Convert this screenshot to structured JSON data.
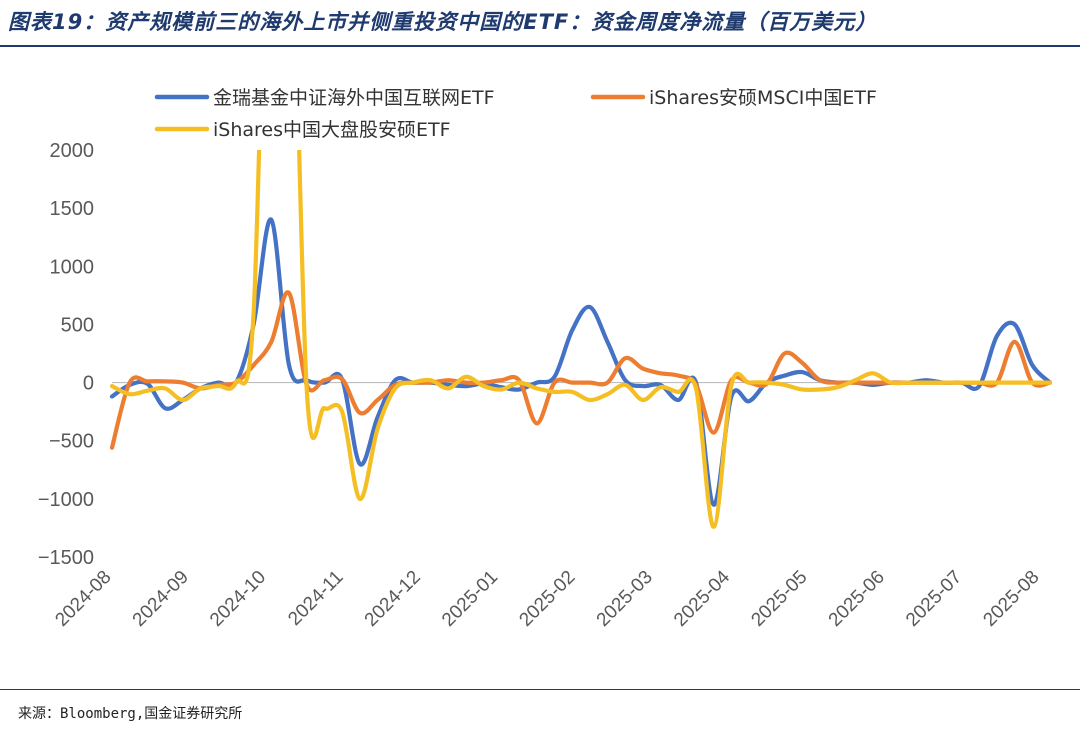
{
  "header": {
    "title": "图表19：资产规模前三的海外上市并侧重投资中国的ETF：资金周度净流量（百万美元）"
  },
  "footer": {
    "source": "来源：Bloomberg,国金证券研究所"
  },
  "chart_data": {
    "type": "line",
    "title": "图表19：资产规模前三的海外上市并侧重投资中国的ETF：资金周度净流量（百万美元）",
    "xlabel": "",
    "ylabel": "",
    "ylim": [
      -1500,
      2000
    ],
    "yticks": [
      2000,
      1500,
      1000,
      500,
      0,
      -500,
      -1000,
      -1500
    ],
    "xticks": [
      "2024-08",
      "2024-09",
      "2024-10",
      "2024-11",
      "2024-12",
      "2025-01",
      "2025-02",
      "2025-03",
      "2025-04",
      "2025-05",
      "2025-06",
      "2025-07",
      "2025-08"
    ],
    "legend_position": "top",
    "grid": false,
    "x": [
      "2024-08-02",
      "2024-08-09",
      "2024-08-16",
      "2024-08-23",
      "2024-08-30",
      "2024-09-06",
      "2024-09-13",
      "2024-09-20",
      "2024-09-27",
      "2024-10-04",
      "2024-10-11",
      "2024-10-18",
      "2024-10-25",
      "2024-11-01",
      "2024-11-08",
      "2024-11-15",
      "2024-11-22",
      "2024-11-29",
      "2024-12-06",
      "2024-12-13",
      "2024-12-20",
      "2024-12-27",
      "2025-01-03",
      "2025-01-10",
      "2025-01-17",
      "2025-01-24",
      "2025-01-31",
      "2025-02-07",
      "2025-02-14",
      "2025-02-21",
      "2025-02-28",
      "2025-03-07",
      "2025-03-14",
      "2025-03-21",
      "2025-03-28",
      "2025-04-04",
      "2025-04-11",
      "2025-04-18",
      "2025-04-25",
      "2025-05-02",
      "2025-05-09",
      "2025-05-16",
      "2025-05-23",
      "2025-05-30",
      "2025-06-06",
      "2025-06-13",
      "2025-06-20",
      "2025-06-27",
      "2025-07-04",
      "2025-07-11",
      "2025-07-18",
      "2025-07-25",
      "2025-08-01",
      "2025-08-08"
    ],
    "series": [
      {
        "name": "金瑞基金中证海外中国互联网ETF",
        "color": "#4472c4",
        "values": [
          -120,
          -20,
          -10,
          -220,
          -150,
          -50,
          0,
          0,
          500,
          1400,
          150,
          20,
          0,
          30,
          -700,
          -300,
          20,
          0,
          0,
          -20,
          -30,
          -10,
          -40,
          -60,
          0,
          50,
          450,
          650,
          350,
          20,
          -30,
          -20,
          -150,
          0,
          -1050,
          -120,
          -160,
          0,
          60,
          90,
          20,
          0,
          0,
          -20,
          0,
          0,
          20,
          0,
          0,
          -30,
          400,
          500,
          150,
          0
        ]
      },
      {
        "name": "iShares安硕MSCI中国ETF",
        "color": "#ed7d31",
        "values": [
          -560,
          0,
          10,
          10,
          0,
          -50,
          -20,
          0,
          150,
          350,
          770,
          -20,
          20,
          30,
          -260,
          -150,
          -20,
          0,
          0,
          20,
          0,
          0,
          20,
          20,
          -350,
          0,
          0,
          0,
          0,
          210,
          120,
          80,
          60,
          -20,
          -430,
          20,
          0,
          -10,
          250,
          170,
          20,
          0,
          0,
          0,
          0,
          0,
          0,
          0,
          0,
          0,
          0,
          350,
          0,
          0
        ]
      },
      {
        "name": "iShares中国大盘股安硕ETF",
        "color": "#f5be22",
        "values": [
          -30,
          -100,
          -70,
          -50,
          -150,
          -50,
          -30,
          0,
          600,
          5500,
          5000,
          -50,
          -220,
          -250,
          -1000,
          -400,
          -50,
          0,
          20,
          -50,
          50,
          -30,
          -60,
          0,
          -50,
          -80,
          -80,
          -150,
          -100,
          -20,
          -150,
          -40,
          -80,
          -50,
          -1240,
          -20,
          0,
          0,
          -20,
          -60,
          -60,
          -40,
          20,
          80,
          0,
          0,
          0,
          0,
          0,
          0,
          0,
          0,
          0,
          0
        ]
      }
    ]
  }
}
